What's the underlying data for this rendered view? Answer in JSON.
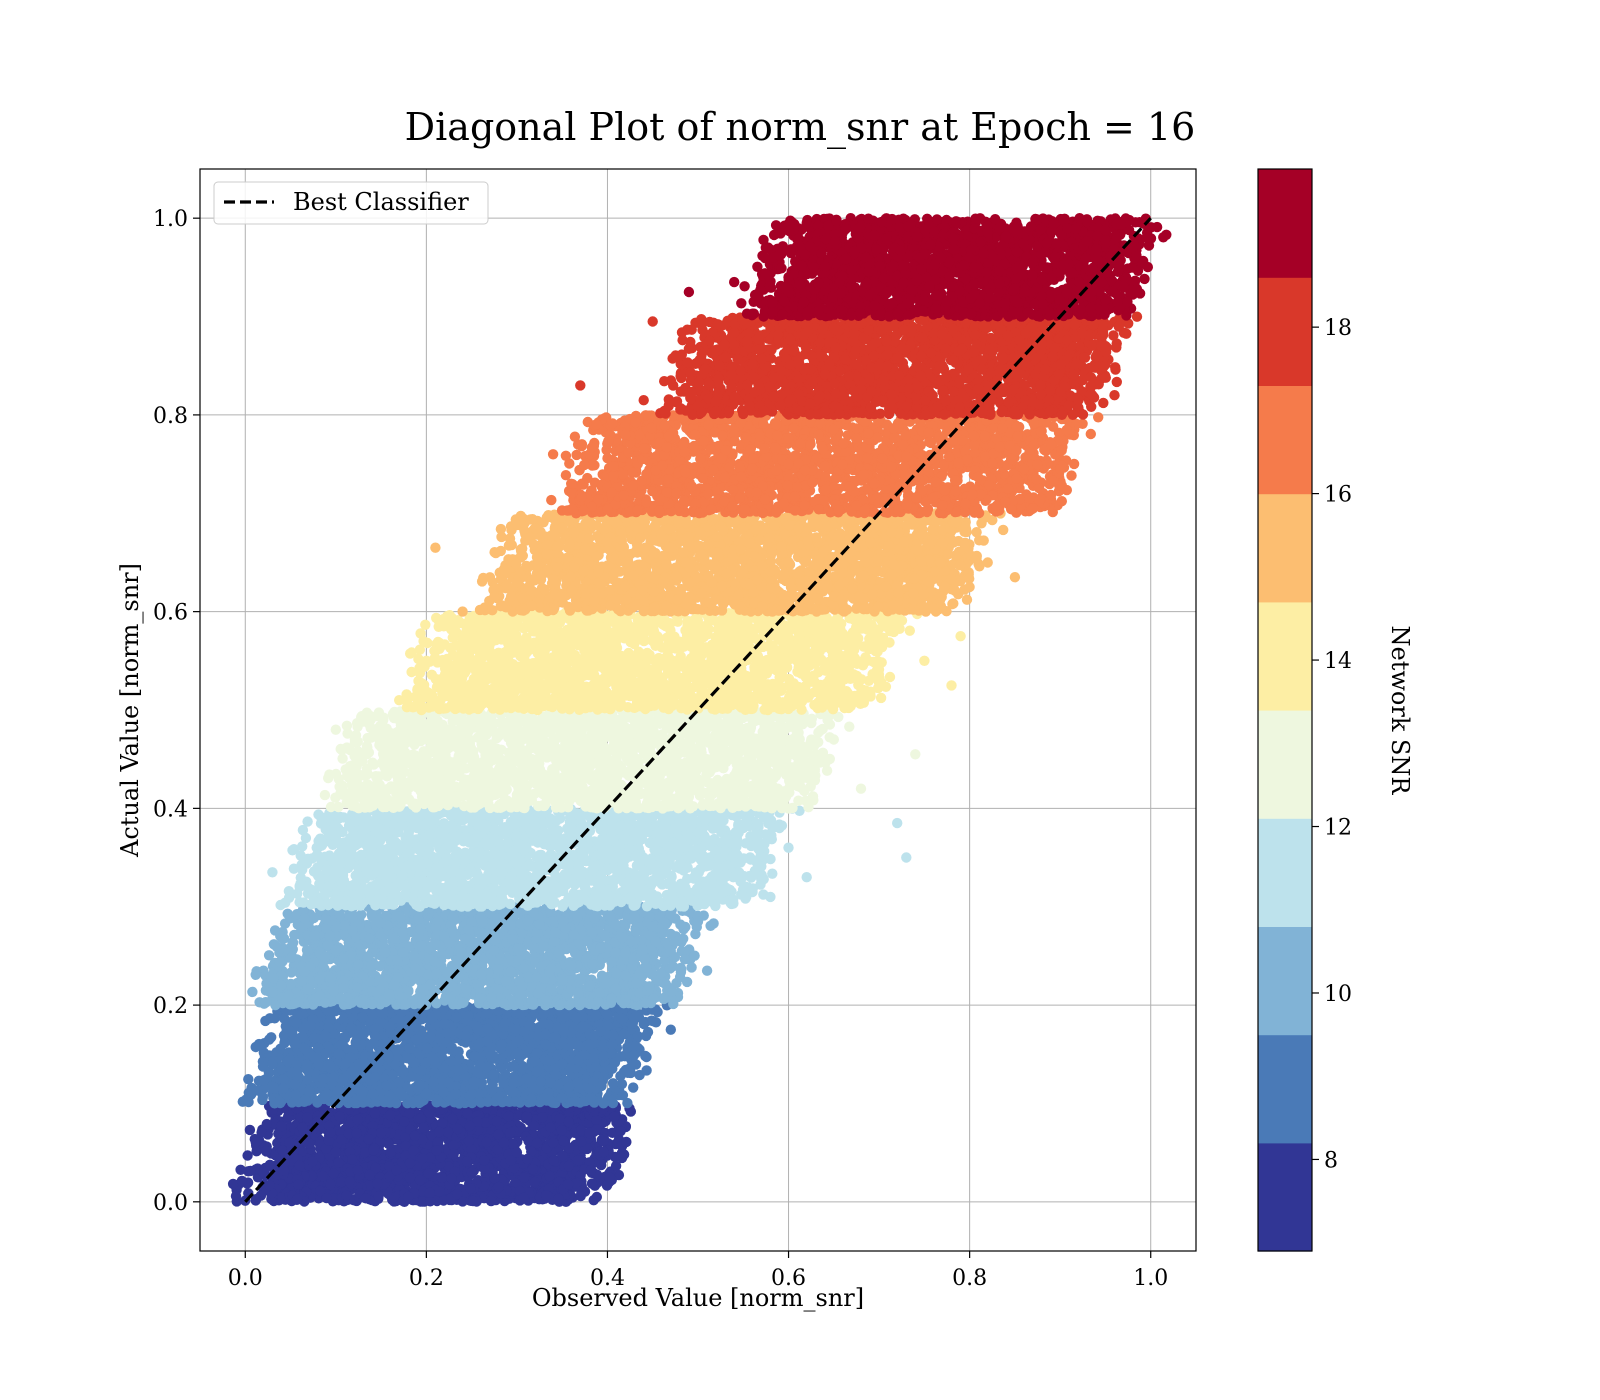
{
  "chart_data": {
    "type": "scatter",
    "title": "Diagonal Plot of norm_snr at Epoch = 16",
    "xlabel": "Observed Value [norm_snr]",
    "ylabel": "Actual Value [norm_snr]",
    "xlim": [
      -0.05,
      1.05
    ],
    "ylim": [
      -0.05,
      1.05
    ],
    "xticks": [
      0.0,
      0.2,
      0.4,
      0.6,
      0.8,
      1.0
    ],
    "yticks": [
      0.0,
      0.2,
      0.4,
      0.6,
      0.8,
      1.0
    ],
    "tick_labels_x": [
      "0.0",
      "0.2",
      "0.4",
      "0.6",
      "0.8",
      "1.0"
    ],
    "tick_labels_y": [
      "0.0",
      "0.2",
      "0.4",
      "0.6",
      "0.8",
      "1.0"
    ],
    "grid": true,
    "legend": {
      "placement": "upper-left",
      "entries": [
        "Best Classifier"
      ]
    },
    "reference_line": {
      "name": "Best Classifier",
      "x": [
        0.0,
        1.0
      ],
      "y": [
        0.0,
        1.0
      ],
      "style": "dashed",
      "color": "#000000"
    },
    "colorbar": {
      "label": "Network SNR",
      "range": [
        6.9,
        19.9
      ],
      "tick_values": [
        8,
        10,
        12,
        14,
        16,
        18
      ],
      "tick_labels": [
        "8",
        "10",
        "12",
        "14",
        "16",
        "18"
      ],
      "bins": [
        {
          "snr_range": [
            6.9,
            8.2
          ],
          "y_range": [
            0.0,
            0.1
          ],
          "x_range": [
            0.02,
            0.4
          ],
          "color": "#313695"
        },
        {
          "snr_range": [
            8.2,
            9.5
          ],
          "y_range": [
            0.1,
            0.2
          ],
          "x_range": [
            0.03,
            0.43
          ],
          "color": "#4a7ab7"
        },
        {
          "snr_range": [
            9.5,
            10.8
          ],
          "y_range": [
            0.2,
            0.3
          ],
          "x_range": [
            0.04,
            0.48
          ],
          "color": "#81b3d6"
        },
        {
          "snr_range": [
            10.8,
            12.1
          ],
          "y_range": [
            0.3,
            0.4
          ],
          "x_range": [
            0.07,
            0.57
          ],
          "color": "#bde2ec"
        },
        {
          "snr_range": [
            12.1,
            13.4
          ],
          "y_range": [
            0.4,
            0.5
          ],
          "x_range": [
            0.12,
            0.63
          ],
          "color": "#eef7df"
        },
        {
          "snr_range": [
            13.4,
            14.7
          ],
          "y_range": [
            0.5,
            0.6
          ],
          "x_range": [
            0.2,
            0.7
          ],
          "color": "#fdeea4"
        },
        {
          "snr_range": [
            14.7,
            16.0
          ],
          "y_range": [
            0.6,
            0.7
          ],
          "x_range": [
            0.29,
            0.8
          ],
          "color": "#fcbe71"
        },
        {
          "snr_range": [
            16.0,
            17.3
          ],
          "y_range": [
            0.7,
            0.8
          ],
          "x_range": [
            0.37,
            0.9
          ],
          "color": "#f57b4b"
        },
        {
          "snr_range": [
            17.3,
            18.6
          ],
          "y_range": [
            0.8,
            0.9
          ],
          "x_range": [
            0.49,
            0.95
          ],
          "color": "#d9382a"
        },
        {
          "snr_range": [
            18.6,
            19.9
          ],
          "y_range": [
            0.9,
            1.0
          ],
          "x_range": [
            0.58,
            0.98
          ],
          "color": "#a50026"
        }
      ]
    },
    "series": [
      {
        "values_note_only": "",
        "points": [
          [
            0.02,
            0.03
          ],
          [
            0.18,
            0.005
          ],
          [
            0.28,
            0.015
          ],
          [
            0.3,
            0.05
          ],
          [
            0.34,
            0.06
          ],
          [
            0.25,
            0.03
          ],
          [
            0.15,
            0.07
          ],
          [
            0.38,
            0.07
          ],
          [
            0.03,
            0.14
          ],
          [
            0.2,
            0.11
          ],
          [
            0.35,
            0.14
          ],
          [
            0.38,
            0.16
          ],
          [
            0.4,
            0.19
          ],
          [
            0.38,
            0.115
          ],
          [
            0.47,
            0.175
          ],
          [
            0.33,
            0.105
          ],
          [
            0.04,
            0.22
          ],
          [
            0.22,
            0.27
          ],
          [
            0.45,
            0.28
          ],
          [
            0.5,
            0.285
          ],
          [
            0.51,
            0.235
          ],
          [
            0.42,
            0.23
          ],
          [
            0.47,
            0.255
          ],
          [
            0.36,
            0.24
          ],
          [
            0.03,
            0.335
          ],
          [
            0.1,
            0.37
          ],
          [
            0.3,
            0.35
          ],
          [
            0.55,
            0.38
          ],
          [
            0.59,
            0.38
          ],
          [
            0.6,
            0.36
          ],
          [
            0.62,
            0.33
          ],
          [
            0.72,
            0.385
          ],
          [
            0.73,
            0.35
          ],
          [
            0.58,
            0.31
          ],
          [
            0.1,
            0.48
          ],
          [
            0.12,
            0.44
          ],
          [
            0.3,
            0.45
          ],
          [
            0.55,
            0.42
          ],
          [
            0.65,
            0.47
          ],
          [
            0.68,
            0.42
          ],
          [
            0.74,
            0.455
          ],
          [
            0.6,
            0.4
          ],
          [
            0.2,
            0.55
          ],
          [
            0.17,
            0.51
          ],
          [
            0.25,
            0.57
          ],
          [
            0.5,
            0.55
          ],
          [
            0.7,
            0.57
          ],
          [
            0.78,
            0.525
          ],
          [
            0.79,
            0.575
          ],
          [
            0.75,
            0.55
          ],
          [
            0.21,
            0.665
          ],
          [
            0.24,
            0.6
          ],
          [
            0.3,
            0.63
          ],
          [
            0.35,
            0.685
          ],
          [
            0.6,
            0.65
          ],
          [
            0.82,
            0.65
          ],
          [
            0.85,
            0.635
          ],
          [
            0.8,
            0.625
          ],
          [
            0.34,
            0.76
          ],
          [
            0.36,
            0.73
          ],
          [
            0.42,
            0.78
          ],
          [
            0.6,
            0.75
          ],
          [
            0.9,
            0.745
          ],
          [
            0.87,
            0.705
          ],
          [
            0.89,
            0.77
          ],
          [
            0.37,
            0.83
          ],
          [
            0.44,
            0.815
          ],
          [
            0.45,
            0.895
          ],
          [
            0.48,
            0.86
          ],
          [
            0.7,
            0.85
          ],
          [
            0.95,
            0.87
          ],
          [
            0.96,
            0.82
          ],
          [
            0.49,
            0.925
          ],
          [
            0.54,
            0.935
          ],
          [
            0.6,
            0.94
          ],
          [
            0.62,
            0.995
          ],
          [
            0.8,
            0.96
          ],
          [
            0.98,
            0.97
          ],
          [
            0.97,
            0.93
          ]
        ]
      }
    ]
  }
}
